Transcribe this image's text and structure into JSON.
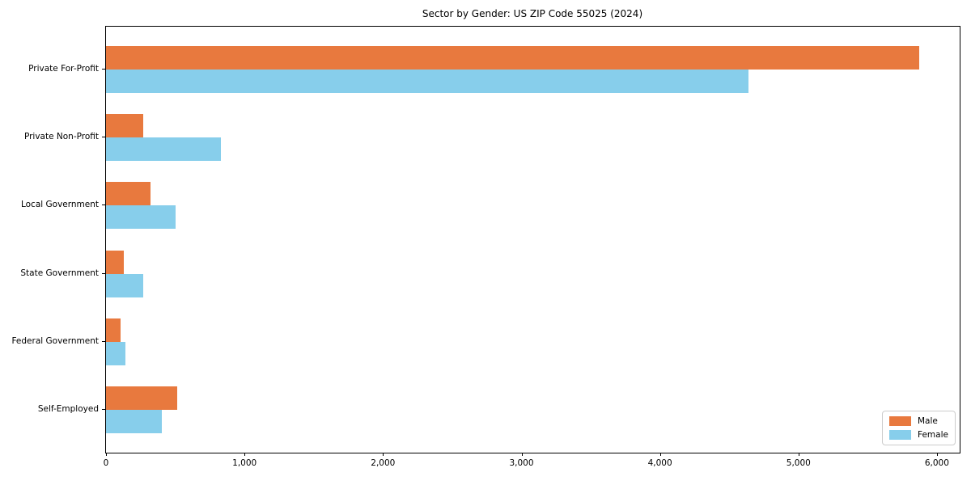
{
  "chart_data": {
    "type": "bar",
    "orientation": "horizontal",
    "title": "Sector by Gender: US ZIP Code 55025 (2024)",
    "categories": [
      "Private For-Profit",
      "Private Non-Profit",
      "Local Government",
      "State Government",
      "Federal Government",
      "Self-Employed"
    ],
    "series": [
      {
        "name": "Male",
        "color": "#e8793e",
        "values": [
          5870,
          270,
          320,
          130,
          105,
          515
        ]
      },
      {
        "name": "Female",
        "color": "#87ceeb",
        "values": [
          4640,
          830,
          500,
          270,
          140,
          400
        ]
      }
    ],
    "xlabel": "",
    "ylabel": "",
    "xlim": [
      0,
      6164
    ],
    "x_ticks": [
      0,
      1000,
      2000,
      3000,
      4000,
      5000,
      6000
    ],
    "x_tick_labels": [
      "0",
      "1,000",
      "2,000",
      "3,000",
      "4,000",
      "5,000",
      "6,000"
    ],
    "grid": false,
    "legend": {
      "position": "lower right",
      "entries": [
        "Male",
        "Female"
      ]
    },
    "colors": {
      "male": "#e8793e",
      "female": "#87ceeb",
      "spine": "#000000",
      "legend_border": "#cccccc"
    }
  }
}
